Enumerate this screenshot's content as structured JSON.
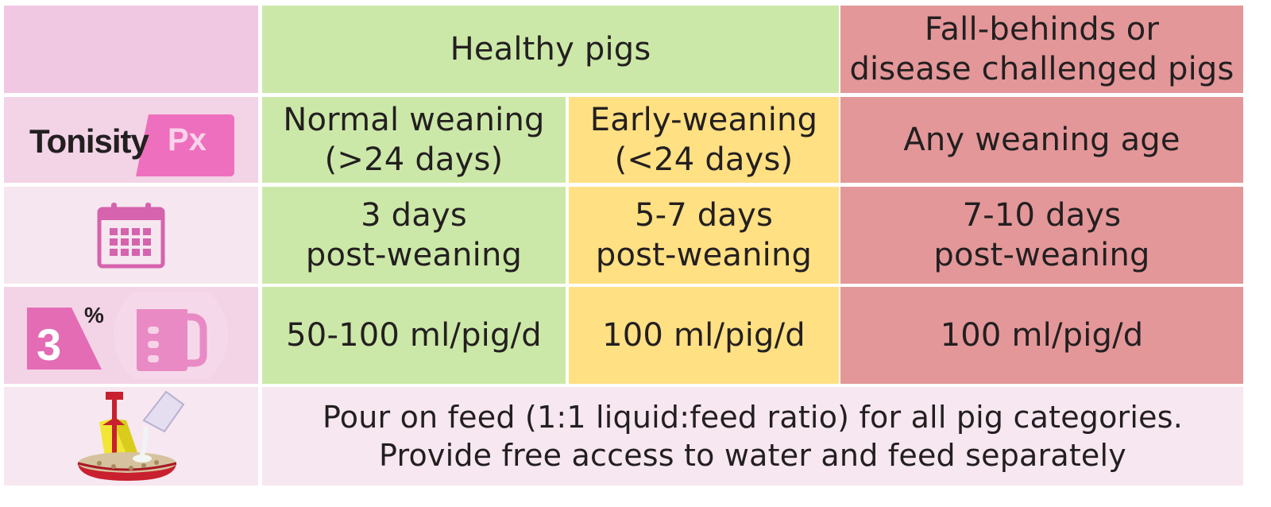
{
  "header": {
    "healthy": "Healthy pigs",
    "challenged": "Fall-behinds or\ndisease challenged pigs"
  },
  "logo": {
    "brand": "Tonisity",
    "product": "Px"
  },
  "weaning": {
    "normal": "Normal weaning\n(>24 days)",
    "early": "Early-weaning\n(<24 days)",
    "any": "Any weaning age"
  },
  "duration": {
    "normal": "3 days\npost-weaning",
    "early": "5-7 days\npost-weaning",
    "any": "7-10 days\npost-weaning"
  },
  "dosage": {
    "percent_badge": "3",
    "percent_sign": "%",
    "normal": "50-100 ml/pig/d",
    "early": "100 ml/pig/d",
    "any": "100 ml/pig/d"
  },
  "footer": {
    "text": "Pour on feed (1:1 liquid:feed ratio) for all pig categories.\nProvide free access to water and feed separately"
  },
  "colors": {
    "healthy": "#cce8a8",
    "early": "#ffe083",
    "challenged": "#e39799",
    "brand_pink": "#ee6fbd",
    "icon_pink": "#d563ad"
  },
  "icons": [
    "calendar-icon",
    "percent-badge-icon",
    "measuring-jug-icon",
    "feeder-icon"
  ]
}
